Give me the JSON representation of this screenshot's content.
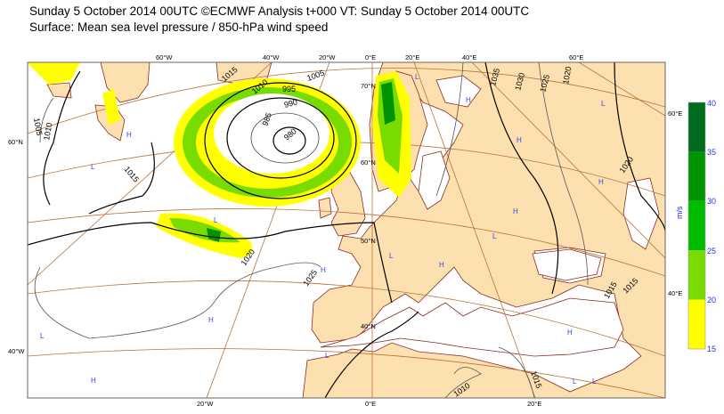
{
  "header": {
    "title": "Sunday 5 October 2014 00UTC ©ECMWF Analysis t+000 VT: Sunday 5 October 2014 00UTC",
    "subtitle": "Surface: Mean sea level pressure / 850-hPa wind speed"
  },
  "map": {
    "colors": {
      "land": "#fde0b0",
      "sea": "#ffffff",
      "coast": "#8b2b22",
      "graticule": "#b8733a",
      "isobar": "#000000",
      "hl_marker": "#3344ee"
    },
    "top_axis": [
      "60°W",
      "40°W",
      "20°W",
      "0°E",
      "20°E",
      "40°E",
      "60°E"
    ],
    "bottom_axis": [
      "20°W",
      "0°E",
      "20°E"
    ],
    "left_axis": [
      "60°N",
      "40°W"
    ],
    "right_axis": [
      "60°E",
      "40°E"
    ],
    "inner_lat_labels": [
      "70°N",
      "60°N",
      "50°N",
      "40°N"
    ],
    "isobar_labels": [
      "1015",
      "1010",
      "1005",
      "995",
      "990",
      "985",
      "980",
      "1005",
      "1010",
      "1015",
      "1020",
      "1025",
      "1035",
      "1030",
      "1025",
      "1020",
      "1020",
      "1015",
      "1015",
      "1015",
      "1010"
    ],
    "pressure_centres": [
      "H",
      "L",
      "L",
      "H",
      "H",
      "L",
      "H",
      "H",
      "L",
      "L",
      "H",
      "L",
      "H",
      "H",
      "L",
      "L",
      "H",
      "H",
      "L",
      "L"
    ]
  },
  "colorbar": {
    "unit": "m/s",
    "ticks": [
      "40",
      "35",
      "30",
      "25",
      "20",
      "15"
    ],
    "colors": [
      "#006a1e",
      "#009400",
      "#00bb00",
      "#78dc00",
      "#ffff00"
    ]
  }
}
